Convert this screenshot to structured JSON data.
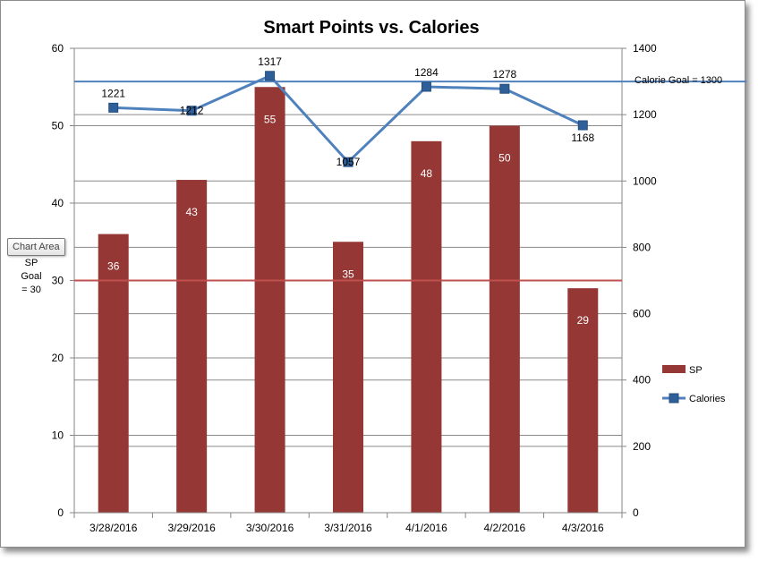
{
  "chart_data": {
    "type": "bar",
    "title": "Smart Points vs. Calories",
    "categories": [
      "3/28/2016",
      "3/29/2016",
      "3/30/2016",
      "3/31/2016",
      "4/1/2016",
      "4/2/2016",
      "4/3/2016"
    ],
    "series": [
      {
        "name": "SP",
        "type": "bar",
        "axis": "left",
        "color": "#953735",
        "values": [
          36,
          43,
          55,
          35,
          48,
          50,
          29
        ]
      },
      {
        "name": "Calories",
        "type": "line",
        "axis": "right",
        "color": "#4f81bd",
        "marker": "square",
        "values": [
          1221,
          1212,
          1317,
          1057,
          1284,
          1278,
          1168
        ]
      }
    ],
    "y_left": {
      "ylim": [
        0,
        60
      ],
      "ticks": [
        0,
        10,
        20,
        30,
        40,
        50,
        60
      ]
    },
    "y_right": {
      "ylim": [
        0,
        1400
      ],
      "ticks": [
        0,
        200,
        400,
        600,
        800,
        1000,
        1200,
        1400
      ]
    },
    "reference_lines": [
      {
        "axis": "left",
        "value": 30,
        "color": "#c0504d",
        "label_lines": [
          "SP",
          "Goal",
          "= 30"
        ]
      },
      {
        "axis": "right",
        "value": 1300,
        "color": "#4f81bd",
        "label": "Calorie Goal = 1300"
      }
    ],
    "grid": true,
    "legend": {
      "position": "right",
      "entries": [
        "SP",
        "Calories"
      ]
    }
  },
  "tooltip": {
    "label": "Chart Area"
  }
}
